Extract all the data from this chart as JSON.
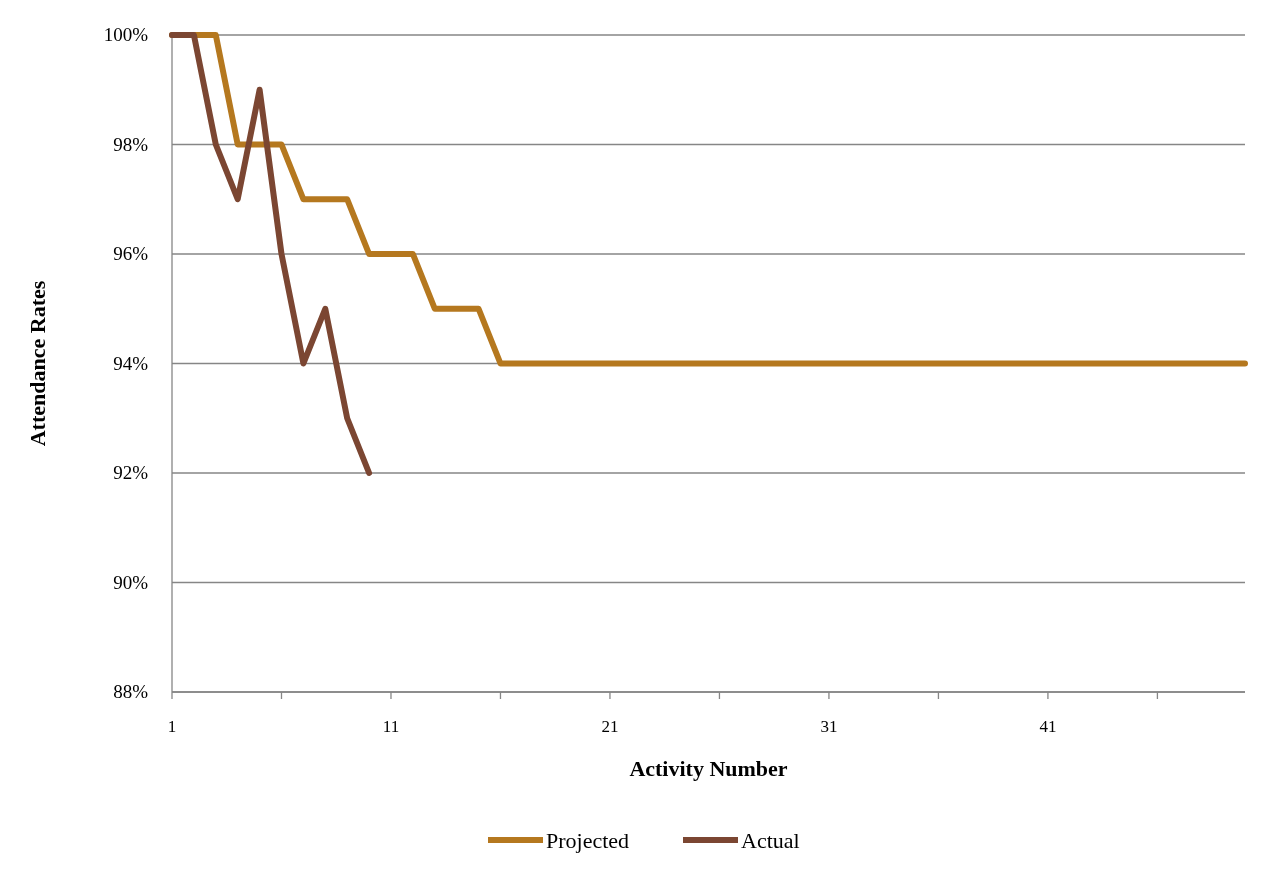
{
  "chart_data": {
    "type": "line",
    "xlabel": "Activity Number",
    "ylabel": "Attendance Rates",
    "x": [
      1,
      2,
      3,
      4,
      5,
      6,
      7,
      8,
      9,
      10,
      11,
      12,
      13,
      14,
      15,
      16,
      17,
      18,
      19,
      20,
      21,
      22,
      23,
      24,
      25,
      26,
      27,
      28,
      29,
      30,
      31,
      32,
      33,
      34,
      35,
      36,
      37,
      38,
      39,
      40,
      41,
      42,
      43,
      44,
      45,
      46,
      47,
      48,
      49,
      50
    ],
    "series": [
      {
        "name": "Projected",
        "color": "#b5781f",
        "values": [
          100,
          100,
          100,
          98,
          98,
          98,
          97,
          97,
          97,
          96,
          96,
          96,
          95,
          95,
          95,
          94,
          94,
          94,
          94,
          94,
          94,
          94,
          94,
          94,
          94,
          94,
          94,
          94,
          94,
          94,
          94,
          94,
          94,
          94,
          94,
          94,
          94,
          94,
          94,
          94,
          94,
          94,
          94,
          94,
          94,
          94,
          94,
          94,
          94,
          94
        ]
      },
      {
        "name": "Actual",
        "color": "#7b4632",
        "x": [
          1,
          2,
          3,
          4,
          5,
          6,
          7,
          8,
          9,
          10
        ],
        "values": [
          100,
          100,
          98,
          97,
          99,
          96,
          94,
          95,
          93,
          92
        ]
      }
    ],
    "xlim": [
      1,
      50
    ],
    "xticks": [
      1,
      {
        "value": 6,
        "label": null
      },
      11,
      {
        "value": 16,
        "label": null
      },
      21,
      {
        "value": 26,
        "label": null
      },
      31,
      {
        "value": 36,
        "label": null
      },
      41,
      {
        "value": 46,
        "label": null
      }
    ],
    "ylim": [
      88,
      100
    ],
    "yticks": [
      {
        "value": 88,
        "label": "88%"
      },
      {
        "value": 90,
        "label": "90%"
      },
      {
        "value": 92,
        "label": "92%"
      },
      {
        "value": 94,
        "label": "94%"
      },
      {
        "value": 96,
        "label": "96%"
      },
      {
        "value": 98,
        "label": "98%"
      },
      {
        "value": 100,
        "label": "100%"
      }
    ],
    "grid": "y",
    "legend": "bottom",
    "marker": "none",
    "line_style": "solid"
  }
}
